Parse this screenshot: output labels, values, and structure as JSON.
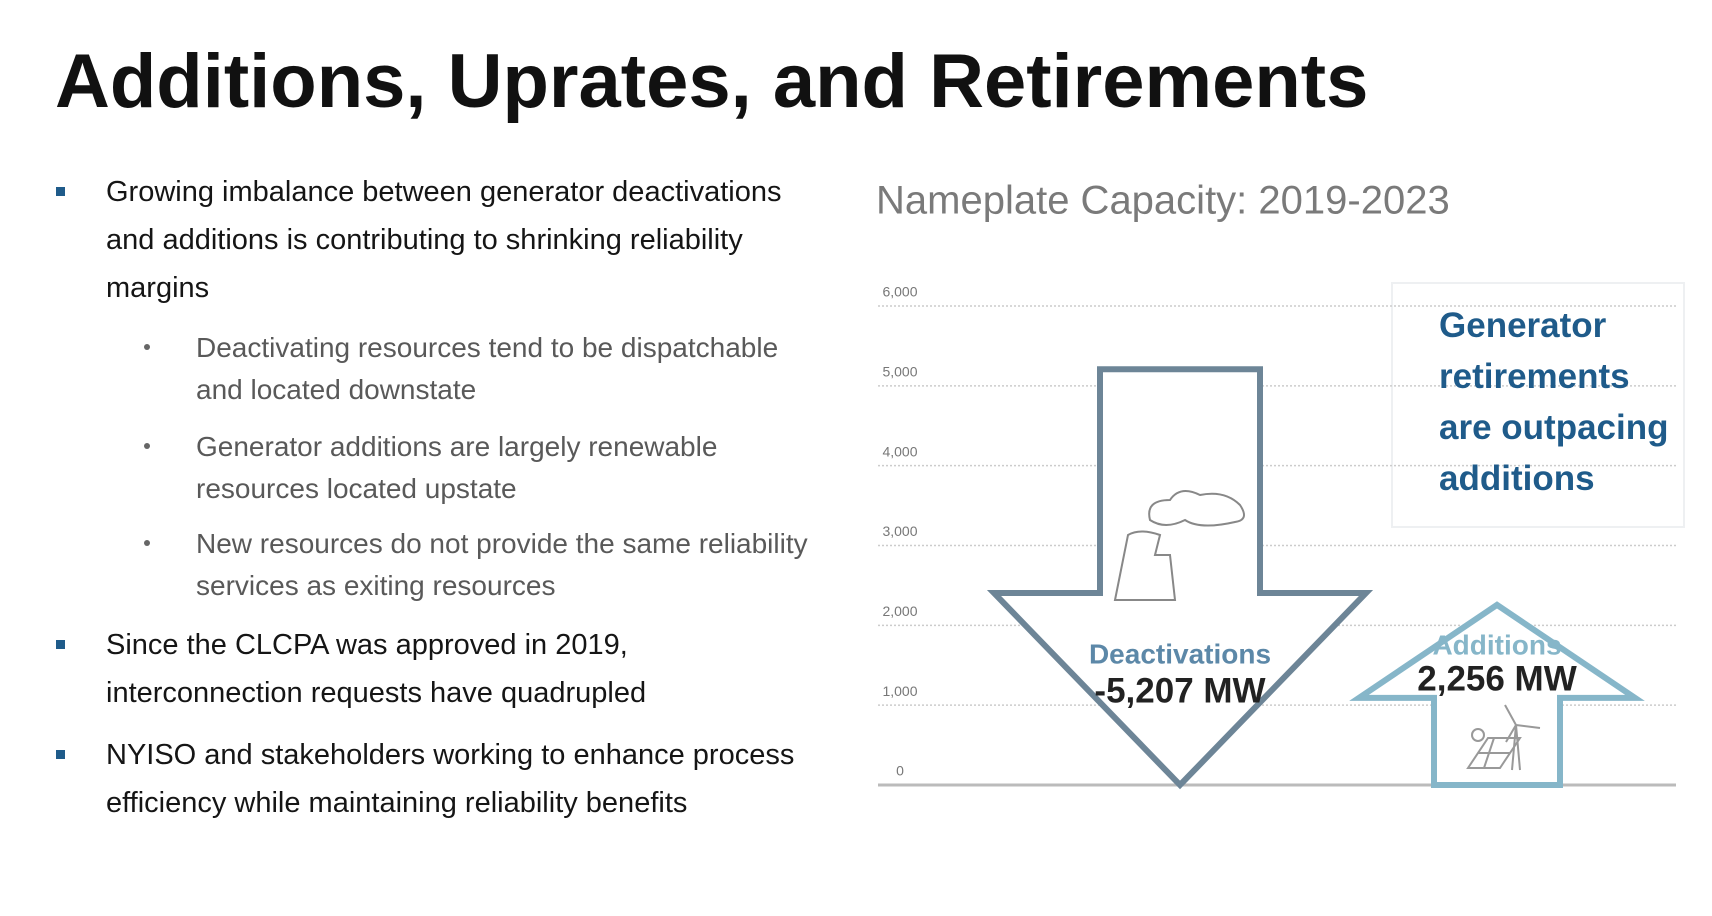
{
  "title": "Additions, Uprates, and Retirements",
  "bullets": [
    {
      "text": "Growing imbalance between generator deactivations and additions is contributing to shrinking reliability margins",
      "subbullets": [
        "Deactivating resources tend to be dispatchable and located downstate",
        "Generator additions are largely renewable resources located upstate",
        "New resources do not provide the same reliability services as exiting resources"
      ]
    },
    {
      "text": "Since the CLCPA was approved in 2019, interconnection requests have quadrupled"
    },
    {
      "text": "NYISO and stakeholders working to enhance process efficiency while maintaining reliability benefits"
    }
  ],
  "chart_data": {
    "type": "arrow",
    "title": "Nameplate Capacity:  2019-2023",
    "categories": [
      "Deactivations",
      "Additions"
    ],
    "values": [
      -5207,
      2256
    ],
    "value_labels": [
      "-5,207 MW",
      "2,256 MW"
    ],
    "colors": [
      "#6d8597",
      "#86b6c9"
    ],
    "ylim": [
      0,
      6000
    ],
    "yticks": [
      {
        "value": 0,
        "label": "0"
      },
      {
        "value": 1000,
        "label": "1,000"
      },
      {
        "value": 2000,
        "label": "2,000"
      },
      {
        "value": 3000,
        "label": "3,000"
      },
      {
        "value": 4000,
        "label": "4,000"
      },
      {
        "value": 5000,
        "label": "5,000"
      },
      {
        "value": 6000,
        "label": "6,000"
      }
    ],
    "grid": true,
    "annotation": "Generator retirements are outpacing additions"
  }
}
